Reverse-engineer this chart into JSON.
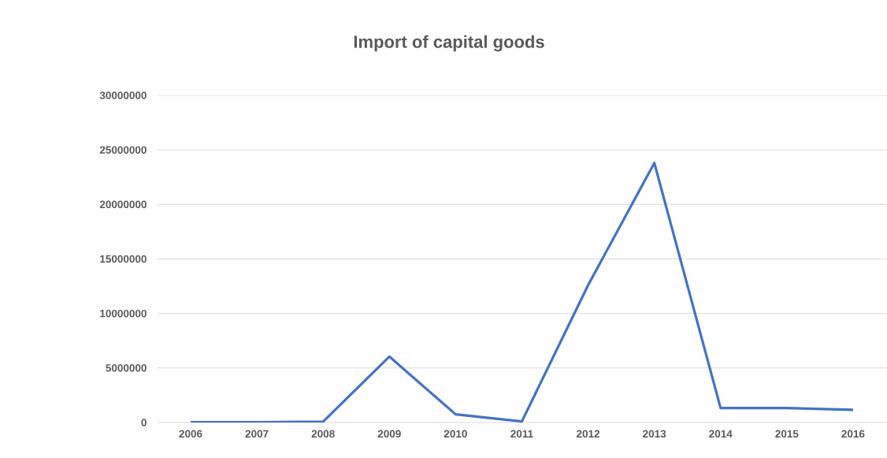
{
  "chart_data": {
    "type": "line",
    "title": "Import of capital goods",
    "categories": [
      "2006",
      "2007",
      "2008",
      "2009",
      "2010",
      "2011",
      "2012",
      "2013",
      "2014",
      "2015",
      "2016"
    ],
    "values": [
      20000,
      30000,
      80000,
      6050000,
      750000,
      100000,
      12600000,
      23800000,
      1330000,
      1330000,
      1170000
    ],
    "color": "#4472c4",
    "ylim": [
      0,
      30000000
    ],
    "yticks": [
      0,
      5000000,
      10000000,
      15000000,
      20000000,
      25000000,
      30000000
    ],
    "grid": "y",
    "marker": "none",
    "line_style": "solid"
  }
}
